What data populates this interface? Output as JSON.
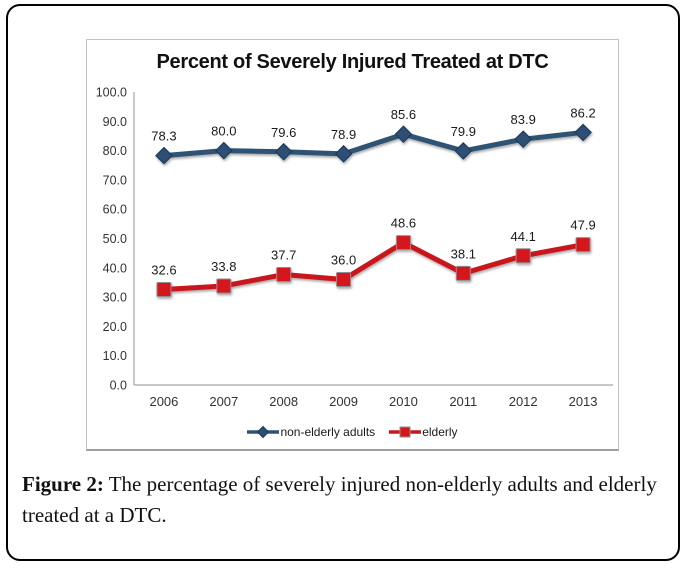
{
  "figure": {
    "caption_label": "Figure 2:",
    "caption_text": " The percentage of severely injured non-elderly adults and elderly treated at a DTC."
  },
  "chart_data": {
    "type": "line",
    "title": "Percent of Severely Injured Treated at DTC",
    "categories": [
      "2006",
      "2007",
      "2008",
      "2009",
      "2010",
      "2011",
      "2012",
      "2013"
    ],
    "series": [
      {
        "name": "non-elderly adults",
        "marker": "diamond",
        "line_color": "#2F5273",
        "marker_fill": "#2E4F74",
        "marker_stroke": "#1C3A5A",
        "values": [
          78.3,
          80.0,
          79.6,
          78.9,
          85.6,
          79.9,
          83.9,
          86.2
        ]
      },
      {
        "name": "elderly",
        "marker": "square",
        "line_color": "#C9171B",
        "marker_fill": "#D5161A",
        "marker_stroke": "#8F8F8F",
        "values": [
          32.6,
          33.8,
          37.7,
          36.0,
          48.6,
          38.1,
          44.1,
          47.9
        ]
      }
    ],
    "ylim": [
      0,
      100
    ],
    "ytick_step": 10,
    "ytick_decimals": 1,
    "data_label_decimals": 1,
    "grid": false,
    "legend_position": "bottom",
    "axis_color": "#A8A8A8",
    "tick_label_color": "#333333",
    "data_label_color": "#1b1b1b"
  }
}
